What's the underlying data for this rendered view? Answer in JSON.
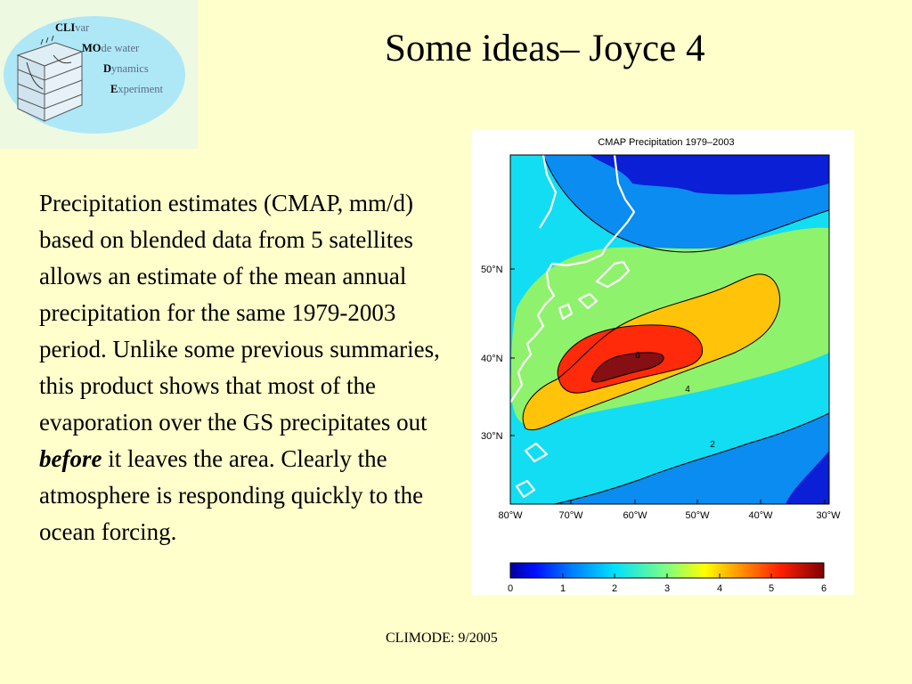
{
  "logo": {
    "line1": {
      "caps": "CLI",
      "rest": "var"
    },
    "line2": {
      "caps": "MO",
      "rest": "de water"
    },
    "line3": {
      "caps": "D",
      "rest": "ynamics"
    },
    "line4": {
      "caps": "E",
      "rest": "xperiment"
    }
  },
  "slide": {
    "title": "Some ideas– Joyce 4",
    "body_part1": "Precipitation estimates (CMAP, mm/d) based on blended data from 5 satellites allows an estimate of the mean annual precipitation for the same 1979-2003 period. Unlike some previous summaries, this product shows that most of the evaporation over the GS precipitates out ",
    "body_emphasis": "before",
    "body_part2": " it leaves the area. Clearly the atmosphere is responding quickly to the ocean forcing.",
    "footer": "CLIMODE: 9/2005"
  },
  "map": {
    "title": "CMAP Precipitation 1979–2003",
    "lat_labels": [
      "50°N",
      "40°N",
      "30°N"
    ],
    "lon_labels": [
      "80°W",
      "70°W",
      "60°W",
      "50°W",
      "40°W",
      "30°W"
    ],
    "contour_labels": [
      "6",
      "4",
      "2"
    ],
    "colorbar_ticks": [
      "0",
      "1",
      "2",
      "3",
      "4",
      "5",
      "6"
    ],
    "colors": {
      "c0": "#0a1fd6",
      "c1": "#0a8cf0",
      "c2": "#12ddf2",
      "c3": "#8ff26c",
      "c4": "#ffc30a",
      "c5": "#ff2a0a",
      "c6": "#850f12"
    }
  }
}
